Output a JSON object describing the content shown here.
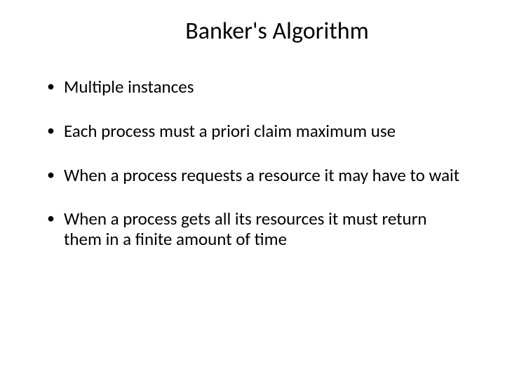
{
  "slide": {
    "title": "Banker's Algorithm",
    "title_fontsize": 34,
    "title_align": "center",
    "background_color": "#ffffff",
    "text_color": "#000000",
    "font_family": "Calibri",
    "bullets": [
      {
        "text": "Multiple instances"
      },
      {
        "text": "Each process must a priori claim maximum use"
      },
      {
        "text": "When a process requests a resource it may have to wait"
      },
      {
        "text": "When a process gets all its resources it must return them in a finite amount of time"
      }
    ],
    "bullet_fontsize": 25,
    "bullet_marker": "•",
    "bullet_spacing": 34
  }
}
